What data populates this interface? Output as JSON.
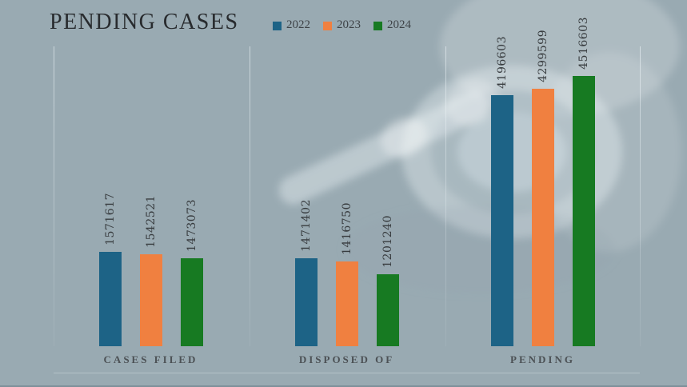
{
  "title": "PENDING CASES",
  "legend": {
    "items": [
      {
        "label": "2022",
        "color": "#1d6386"
      },
      {
        "label": "2023",
        "color": "#f08040"
      },
      {
        "label": "2024",
        "color": "#177a22"
      }
    ]
  },
  "chart_data": {
    "type": "bar",
    "title": "PENDING CASES",
    "categories": [
      "CASES FILED",
      "DISPOSED OF",
      "PENDING"
    ],
    "series": [
      {
        "name": "2022",
        "color": "#1d6386",
        "values": [
          1571617,
          1471402,
          4196603
        ]
      },
      {
        "name": "2023",
        "color": "#f08040",
        "values": [
          1542521,
          1416750,
          4299599
        ]
      },
      {
        "name": "2024",
        "color": "#177a22",
        "values": [
          1473073,
          1201240,
          4516603
        ]
      }
    ],
    "ylim": [
      0,
      4516603
    ],
    "value_labels": "rotated-90-above-bars",
    "legend_position": "top-center",
    "grid": false,
    "background_color": "#99aab2",
    "watermark": "gavel"
  }
}
